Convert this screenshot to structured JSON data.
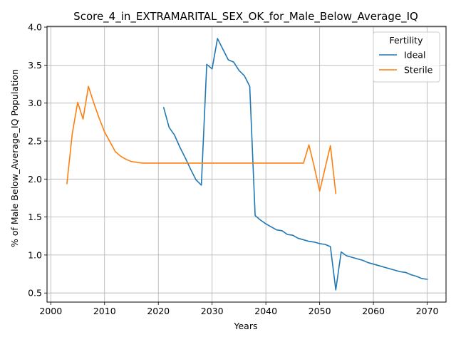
{
  "chart_data": {
    "type": "line",
    "title": "Score_4_in_EXTRAMARITAL_SEX_OK_for_Male_Below_Average_IQ",
    "xlabel": "Years",
    "ylabel": "% of Male Below_Average_IQ Population",
    "xlim": [
      1999.3,
      2073.5
    ],
    "ylim": [
      0.38,
      4.01
    ],
    "xticks": [
      2000,
      2010,
      2020,
      2030,
      2040,
      2050,
      2060,
      2070
    ],
    "xtick_labels": [
      "2000",
      "2010",
      "2020",
      "2030",
      "2040",
      "2050",
      "2060",
      "2070"
    ],
    "yticks": [
      0.5,
      1.0,
      1.5,
      2.0,
      2.5,
      3.0,
      3.5,
      4.0
    ],
    "ytick_labels": [
      "0.5",
      "1.0",
      "1.5",
      "2.0",
      "2.5",
      "3.0",
      "3.5",
      "4.0"
    ],
    "grid": true,
    "legend": {
      "title": "Fertility",
      "placement": "top-right"
    },
    "series": [
      {
        "name": "Ideal",
        "color": "#1f77b4",
        "x": [
          2021,
          2022,
          2023,
          2024,
          2025,
          2026,
          2027,
          2028,
          2029,
          2030,
          2031,
          2032,
          2033,
          2034,
          2035,
          2036,
          2037,
          2038,
          2039,
          2040,
          2041,
          2042,
          2043,
          2044,
          2045,
          2046,
          2047,
          2048,
          2049,
          2050,
          2051,
          2052,
          2053,
          2054,
          2055,
          2056,
          2057,
          2058,
          2059,
          2060,
          2061,
          2062,
          2063,
          2064,
          2065,
          2066,
          2067,
          2068,
          2069,
          2070
        ],
        "values": [
          2.94,
          2.68,
          2.58,
          2.42,
          2.28,
          2.13,
          1.99,
          1.92,
          3.51,
          3.45,
          3.85,
          3.71,
          3.57,
          3.54,
          3.43,
          3.36,
          3.22,
          1.52,
          1.46,
          1.41,
          1.37,
          1.33,
          1.32,
          1.27,
          1.26,
          1.22,
          1.2,
          1.18,
          1.17,
          1.15,
          1.14,
          1.11,
          0.54,
          1.04,
          0.99,
          0.97,
          0.95,
          0.93,
          0.9,
          0.88,
          0.86,
          0.84,
          0.82,
          0.8,
          0.78,
          0.77,
          0.74,
          0.72,
          0.69,
          0.68
        ]
      },
      {
        "name": "Sterile",
        "color": "#ff7f0e",
        "x": [
          2003,
          2004,
          2005,
          2006,
          2007,
          2008,
          2009,
          2010,
          2011,
          2012,
          2013,
          2014,
          2015,
          2016,
          2017,
          2018,
          2019,
          2020,
          2021,
          2022,
          2023,
          2024,
          2025,
          2026,
          2027,
          2028,
          2029,
          2030,
          2031,
          2032,
          2033,
          2034,
          2035,
          2036,
          2037,
          2038,
          2039,
          2040,
          2041,
          2042,
          2043,
          2044,
          2045,
          2046,
          2047,
          2048,
          2049,
          2050,
          2051,
          2052,
          2053
        ],
        "values": [
          1.94,
          2.6,
          3.01,
          2.79,
          3.22,
          3.0,
          2.8,
          2.62,
          2.49,
          2.36,
          2.3,
          2.26,
          2.23,
          2.22,
          2.21,
          2.21,
          2.21,
          2.21,
          2.21,
          2.21,
          2.21,
          2.21,
          2.21,
          2.21,
          2.21,
          2.21,
          2.21,
          2.21,
          2.21,
          2.21,
          2.21,
          2.21,
          2.21,
          2.21,
          2.21,
          2.21,
          2.21,
          2.21,
          2.21,
          2.21,
          2.21,
          2.21,
          2.21,
          2.21,
          2.21,
          2.45,
          2.16,
          1.84,
          2.14,
          2.44,
          1.81
        ]
      }
    ]
  }
}
